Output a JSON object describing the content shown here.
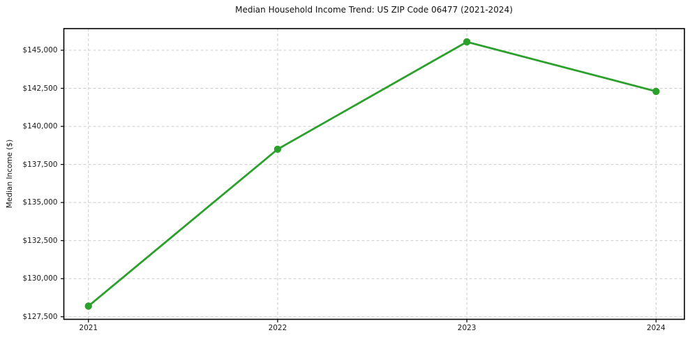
{
  "chart_data": {
    "type": "line",
    "title": "Median Household Income Trend: US ZIP Code 06477 (2021-2024)",
    "ylabel": "Median Income ($)",
    "xlabel": "",
    "x": [
      2021,
      2022,
      2023,
      2024
    ],
    "x_tick_labels": [
      "2021",
      "2022",
      "2023",
      "2024"
    ],
    "values": [
      128200,
      138500,
      145550,
      142300
    ],
    "y_ticks": [
      127500,
      130000,
      132500,
      135000,
      137500,
      140000,
      142500,
      145000
    ],
    "y_tick_labels": [
      "$127,500",
      "$130,000",
      "$132,500",
      "$135,000",
      "$137,500",
      "$140,000",
      "$142,500",
      "$145,000"
    ],
    "xlim": [
      2020.87,
      2024.15
    ],
    "ylim": [
      127330,
      146420
    ],
    "grid": true,
    "grid_line_style": "dashed",
    "legend_position": "none",
    "line_color": "#2ca02c",
    "marker_style": "circle",
    "grid_color": "#cccccc",
    "frame_color": "#000000",
    "background_color": "#ffffff"
  }
}
